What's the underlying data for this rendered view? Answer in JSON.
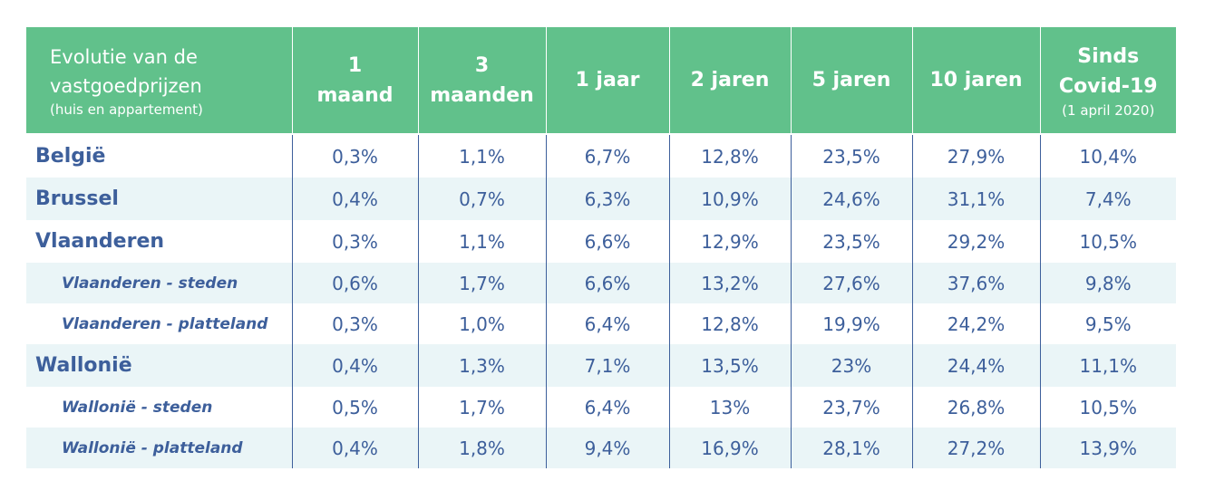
{
  "header": {
    "title_line1": "Evolutie van de",
    "title_line2": "vastgoedprijzen",
    "title_sub": "(huis en appartement)",
    "columns": [
      {
        "line1": "1",
        "line2": "maand"
      },
      {
        "line1": "3",
        "line2": "maanden"
      },
      {
        "line1": "1 jaar"
      },
      {
        "line1": "2 jaren"
      },
      {
        "line1": "5 jaren"
      },
      {
        "line1": "10 jaren"
      },
      {
        "line1": "Sinds",
        "line2": "Covid-19",
        "sub": "(1 april 2020)"
      }
    ]
  },
  "rows": [
    {
      "label": "België",
      "level": "main",
      "shaded": false,
      "values": [
        "0,3%",
        "1,1%",
        "6,7%",
        "12,8%",
        "23,5%",
        "27,9%",
        "10,4%"
      ]
    },
    {
      "label": "Brussel",
      "level": "main",
      "shaded": true,
      "values": [
        "0,4%",
        "0,7%",
        "6,3%",
        "10,9%",
        "24,6%",
        "31,1%",
        "7,4%"
      ]
    },
    {
      "label": "Vlaanderen",
      "level": "main",
      "shaded": false,
      "values": [
        "0,3%",
        "1,1%",
        "6,6%",
        "12,9%",
        "23,5%",
        "29,2%",
        "10,5%"
      ]
    },
    {
      "label": "Vlaanderen - steden",
      "level": "sub",
      "shaded": true,
      "values": [
        "0,6%",
        "1,7%",
        "6,6%",
        "13,2%",
        "27,6%",
        "37,6%",
        "9,8%"
      ]
    },
    {
      "label": "Vlaanderen - platteland",
      "level": "sub",
      "shaded": false,
      "values": [
        "0,3%",
        "1,0%",
        "6,4%",
        "12,8%",
        "19,9%",
        "24,2%",
        "9,5%"
      ]
    },
    {
      "label": "Wallonië",
      "level": "main",
      "shaded": true,
      "values": [
        "0,4%",
        "1,3%",
        "7,1%",
        "13,5%",
        "23%",
        "24,4%",
        "11,1%"
      ]
    },
    {
      "label": "Wallonië - steden",
      "level": "sub",
      "shaded": false,
      "values": [
        "0,5%",
        "1,7%",
        "6,4%",
        "13%",
        "23,7%",
        "26,8%",
        "10,5%"
      ]
    },
    {
      "label": "Wallonië - platteland",
      "level": "sub",
      "shaded": true,
      "values": [
        "0,4%",
        "1,8%",
        "9,4%",
        "16,9%",
        "28,1%",
        "27,2%",
        "13,9%"
      ]
    }
  ],
  "colors": {
    "header_bg": "#61c18b",
    "header_text": "#ffffff",
    "body_text": "#3d5f9b",
    "row_shade": "#eaf5f7"
  }
}
